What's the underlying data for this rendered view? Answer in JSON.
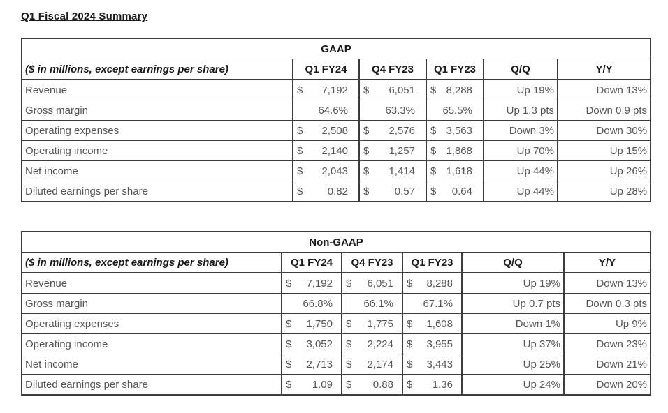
{
  "page": {
    "title": "Q1 Fiscal 2024 Summary"
  },
  "tables": [
    {
      "header": "GAAP",
      "note": "($ in millions, except earnings per share)",
      "columns": [
        "Q1 FY24",
        "Q4 FY23",
        "Q1 FY23",
        "Q/Q",
        "Y/Y"
      ],
      "rows": [
        {
          "label": "Revenue",
          "c1": "$",
          "v1": "7,192",
          "c2": "$",
          "v2": "6,051",
          "c3": "$",
          "v3": "8,288",
          "qq": "Up 19%",
          "yy": "Down 13%"
        },
        {
          "label": "Gross margin",
          "c1": "",
          "v1": "64.6%",
          "c2": "",
          "v2": "63.3%",
          "c3": "",
          "v3": "65.5%",
          "qq": "Up 1.3 pts",
          "yy": "Down 0.9 pts"
        },
        {
          "label": "Operating expenses",
          "c1": "$",
          "v1": "2,508",
          "c2": "$",
          "v2": "2,576",
          "c3": "$",
          "v3": "3,563",
          "qq": "Down 3%",
          "yy": "Down 30%"
        },
        {
          "label": "Operating income",
          "c1": "$",
          "v1": "2,140",
          "c2": "$",
          "v2": "1,257",
          "c3": "$",
          "v3": "1,868",
          "qq": "Up 70%",
          "yy": "Up 15%"
        },
        {
          "label": "Net income",
          "c1": "$",
          "v1": "2,043",
          "c2": "$",
          "v2": "1,414",
          "c3": "$",
          "v3": "1,618",
          "qq": "Up 44%",
          "yy": "Up 26%"
        },
        {
          "label": "Diluted earnings per share",
          "c1": "$",
          "v1": "0.82",
          "c2": "$",
          "v2": "0.57",
          "c3": "$",
          "v3": "0.64",
          "qq": "Up 44%",
          "yy": "Up 28%"
        }
      ]
    },
    {
      "header": "Non-GAAP",
      "note": "($ in millions, except earnings per share)",
      "columns": [
        "Q1 FY24",
        "Q4 FY23",
        "Q1 FY23",
        "Q/Q",
        "Y/Y"
      ],
      "rows": [
        {
          "label": "Revenue",
          "c1": "$",
          "v1": "7,192",
          "c2": "$",
          "v2": "6,051",
          "c3": "$",
          "v3": "8,288",
          "qq": "Up 19%",
          "yy": "Down 13%"
        },
        {
          "label": "Gross margin",
          "c1": "",
          "v1": "66.8%",
          "c2": "",
          "v2": "66.1%",
          "c3": "",
          "v3": "67.1%",
          "qq": "Up 0.7 pts",
          "yy": "Down 0.3 pts"
        },
        {
          "label": "Operating expenses",
          "c1": "$",
          "v1": "1,750",
          "c2": "$",
          "v2": "1,775",
          "c3": "$",
          "v3": "1,608",
          "qq": "Down 1%",
          "yy": "Up 9%"
        },
        {
          "label": "Operating income",
          "c1": "$",
          "v1": "3,052",
          "c2": "$",
          "v2": "2,224",
          "c3": "$",
          "v3": "3,955",
          "qq": "Up 37%",
          "yy": "Down 23%"
        },
        {
          "label": "Net income",
          "c1": "$",
          "v1": "2,713",
          "c2": "$",
          "v2": "2,174",
          "c3": "$",
          "v3": "3,443",
          "qq": "Up 25%",
          "yy": "Down 21%"
        },
        {
          "label": "Diluted earnings per share",
          "c1": "$",
          "v1": "1.09",
          "c2": "$",
          "v2": "0.88",
          "c3": "$",
          "v3": "1.36",
          "qq": "Up 24%",
          "yy": "Down 20%"
        }
      ]
    }
  ]
}
